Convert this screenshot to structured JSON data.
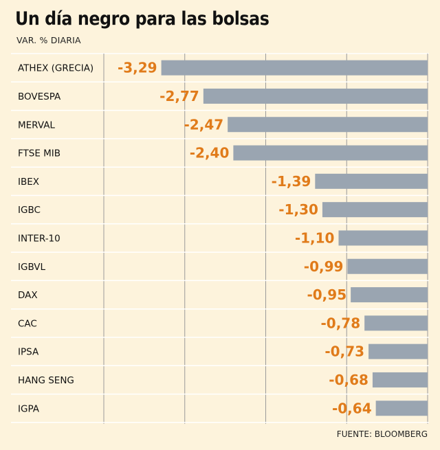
{
  "header": {
    "title": "Un día negro para las bolsas",
    "subtitle": "VAR. % DIARIA"
  },
  "footer": {
    "source": "FUENTE: BLOOMBERG"
  },
  "colors": {
    "bar": "#9aa5b1",
    "value_label": "#e07b1a",
    "background": "#fdf3dc",
    "row_divider": "#ffffff",
    "gridline": "#9a9a9a"
  },
  "chart_data": {
    "type": "bar",
    "orientation": "horizontal",
    "title": "Un día negro para las bolsas",
    "subtitle": "VAR. % DIARIA",
    "categories": [
      "ATHEX (GRECIA)",
      "BOVESPA",
      "MERVAL",
      "FTSE MIB",
      "IBEX",
      "IGBC",
      "INTER-10",
      "IGBVL",
      "DAX",
      "CAC",
      "IPSA",
      "HANG SENG",
      "IGPA"
    ],
    "values": [
      -3.29,
      -2.77,
      -2.47,
      -2.4,
      -1.39,
      -1.3,
      -1.1,
      -0.99,
      -0.95,
      -0.78,
      -0.73,
      -0.68,
      -0.64
    ],
    "value_labels": [
      "-3,29",
      "-2,77",
      "-2,47",
      "-2,40",
      "-1,39",
      "-1,30",
      "-1,10",
      "-0,99",
      "-0,95",
      "-0,78",
      "-0,73",
      "-0,68",
      "-0,64"
    ],
    "xlim": [
      -4,
      0
    ],
    "gridlines": [
      -4,
      -3,
      -2,
      -1
    ],
    "grid": true,
    "xlabel": "",
    "ylabel": "",
    "source": "FUENTE: BLOOMBERG"
  }
}
